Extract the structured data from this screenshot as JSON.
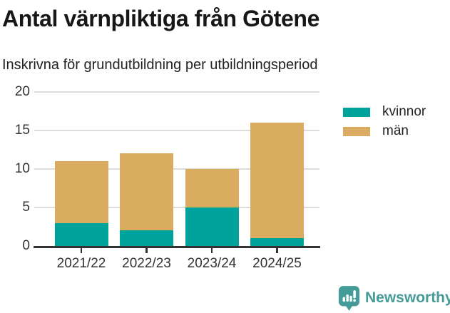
{
  "header": {
    "title": "Antal värnpliktiga från Götene",
    "subtitle": "Inskrivna för grundutbildning per utbildningsperiod"
  },
  "chart_data": {
    "type": "bar",
    "stacked": true,
    "title": "Antal värnpliktiga från Götene",
    "subtitle": "Inskrivna för grundutbildning per utbildningsperiod",
    "categories": [
      "2021/22",
      "2022/23",
      "2023/24",
      "2024/25"
    ],
    "series": [
      {
        "name": "kvinnor",
        "color": "#00a39b",
        "values": [
          3,
          2,
          5,
          1
        ]
      },
      {
        "name": "män",
        "color": "#d9ac60",
        "values": [
          8,
          10,
          5,
          15
        ]
      }
    ],
    "stack_totals": [
      11,
      12,
      10,
      16
    ],
    "xlabel": "",
    "ylabel": "",
    "ylim": [
      0,
      20
    ],
    "yticks": [
      0,
      5,
      10,
      15,
      20
    ],
    "grid": "horizontal",
    "gridline_color": "#dcdcdc",
    "axis_color": "#333333",
    "legend_position": "right-top-outside"
  },
  "footer": {
    "brand": "Newsworthy",
    "brand_color": "#459b97",
    "logo_icon": "bar-chart-speech-bubble-icon"
  }
}
